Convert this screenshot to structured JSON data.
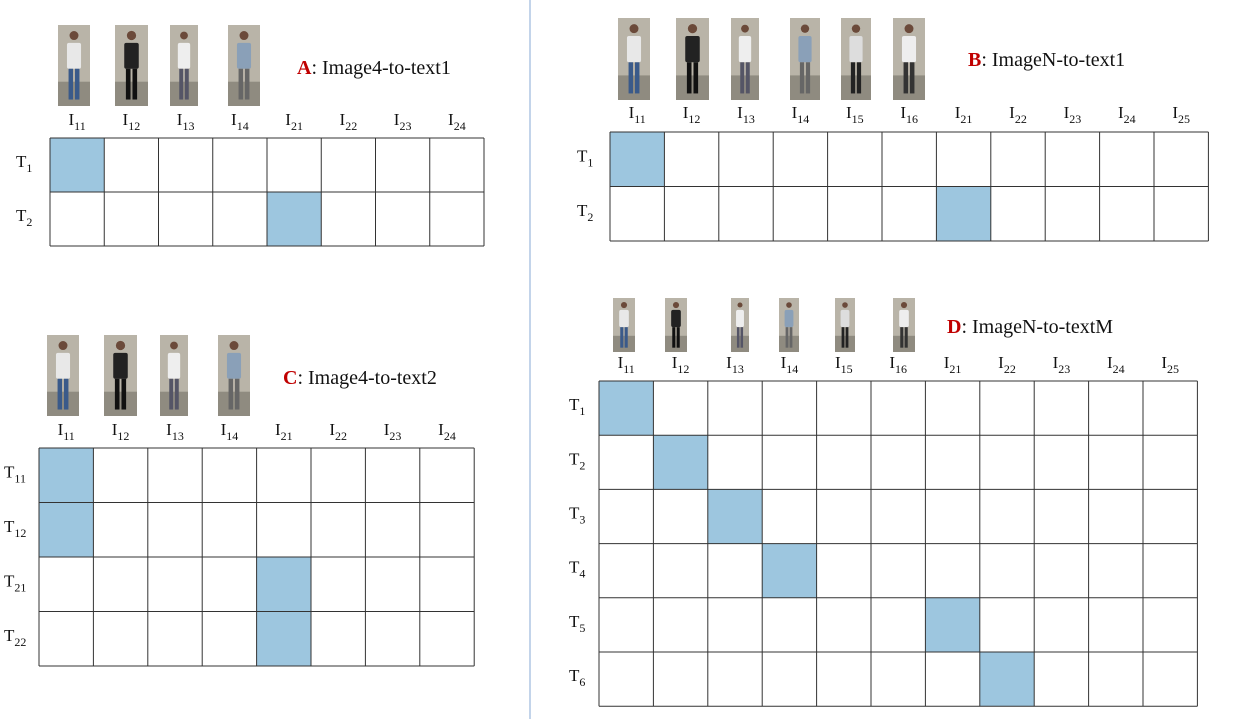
{
  "panels": [
    {
      "letter": "A",
      "title": ": Image4-to-text1",
      "columns": [
        {
          "base": "I",
          "sub": "11"
        },
        {
          "base": "I",
          "sub": "12"
        },
        {
          "base": "I",
          "sub": "13"
        },
        {
          "base": "I",
          "sub": "14"
        },
        {
          "base": "I",
          "sub": "21"
        },
        {
          "base": "I",
          "sub": "22"
        },
        {
          "base": "I",
          "sub": "23"
        },
        {
          "base": "I",
          "sub": "24"
        }
      ],
      "rows": [
        {
          "base": "T",
          "sub": "1"
        },
        {
          "base": "T",
          "sub": "2"
        }
      ]
    },
    {
      "letter": "B",
      "title": ": ImageN-to-text1",
      "columns": [
        {
          "base": "I",
          "sub": "11"
        },
        {
          "base": "I",
          "sub": "12"
        },
        {
          "base": "I",
          "sub": "13"
        },
        {
          "base": "I",
          "sub": "14"
        },
        {
          "base": "I",
          "sub": "15"
        },
        {
          "base": "I",
          "sub": "16"
        },
        {
          "base": "I",
          "sub": "21"
        },
        {
          "base": "I",
          "sub": "22"
        },
        {
          "base": "I",
          "sub": "23"
        },
        {
          "base": "I",
          "sub": "24"
        },
        {
          "base": "I",
          "sub": "25"
        }
      ],
      "rows": [
        {
          "base": "T",
          "sub": "1"
        },
        {
          "base": "T",
          "sub": "2"
        }
      ]
    },
    {
      "letter": "C",
      "title": ": Image4-to-text2",
      "columns": [
        {
          "base": "I",
          "sub": "11"
        },
        {
          "base": "I",
          "sub": "12"
        },
        {
          "base": "I",
          "sub": "13"
        },
        {
          "base": "I",
          "sub": "14"
        },
        {
          "base": "I",
          "sub": "21"
        },
        {
          "base": "I",
          "sub": "22"
        },
        {
          "base": "I",
          "sub": "23"
        },
        {
          "base": "I",
          "sub": "24"
        }
      ],
      "rows": [
        {
          "base": "T",
          "sub": "11"
        },
        {
          "base": "T",
          "sub": "12"
        },
        {
          "base": "T",
          "sub": "21"
        },
        {
          "base": "T",
          "sub": "22"
        }
      ]
    },
    {
      "letter": "D",
      "title": ": ImageN-to-textM",
      "columns": [
        {
          "base": "I",
          "sub": "11"
        },
        {
          "base": "I",
          "sub": "12"
        },
        {
          "base": "I",
          "sub": "13"
        },
        {
          "base": "I",
          "sub": "14"
        },
        {
          "base": "I",
          "sub": "15"
        },
        {
          "base": "I",
          "sub": "16"
        },
        {
          "base": "I",
          "sub": "21"
        },
        {
          "base": "I",
          "sub": "22"
        },
        {
          "base": "I",
          "sub": "23"
        },
        {
          "base": "I",
          "sub": "24"
        },
        {
          "base": "I",
          "sub": "25"
        }
      ],
      "rows": [
        {
          "base": "T",
          "sub": "1"
        },
        {
          "base": "T",
          "sub": "2"
        },
        {
          "base": "T",
          "sub": "3"
        },
        {
          "base": "T",
          "sub": "4"
        },
        {
          "base": "T",
          "sub": "5"
        },
        {
          "base": "T",
          "sub": "6"
        }
      ]
    }
  ]
}
